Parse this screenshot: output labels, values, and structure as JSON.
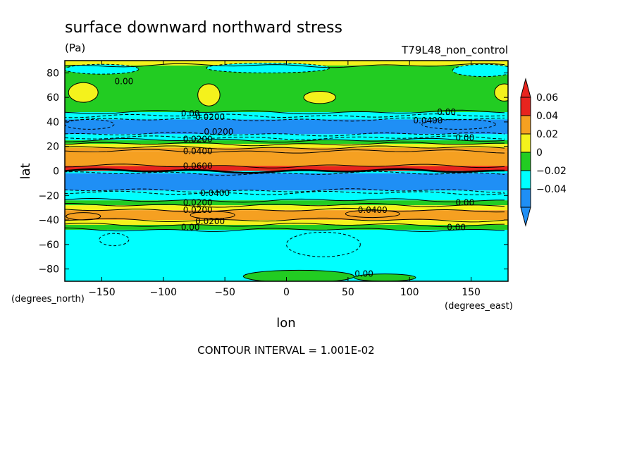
{
  "chart_data": {
    "type": "heatmap",
    "title": "surface downward northward stress",
    "units": "(Pa)",
    "run_label": "T79L48_non_control",
    "xlabel": "lon",
    "ylabel": "lat",
    "x_units": "(degrees_east)",
    "y_units": "(degrees_north)",
    "xlim": [
      -180,
      180
    ],
    "ylim": [
      -90,
      90
    ],
    "x_ticks": [
      -150,
      -100,
      -50,
      0,
      50,
      100,
      150
    ],
    "y_ticks": [
      80,
      60,
      40,
      20,
      0,
      -20,
      -40,
      -60,
      -80
    ],
    "x_tick_labels": [
      "−150",
      "−100",
      "−50",
      "0",
      "50",
      "100",
      "150"
    ],
    "y_tick_labels": [
      "80",
      "60",
      "40",
      "20",
      "0",
      "−20",
      "−40",
      "−60",
      "−80"
    ],
    "footer": "CONTOUR INTERVAL = 1.001E-02",
    "colorbar": {
      "labels": [
        "0.06",
        "0.04",
        "0.02",
        "0",
        "−0.02",
        "−0.04"
      ],
      "levels": [
        0.06,
        0.04,
        0.02,
        0,
        -0.02,
        -0.04
      ],
      "colors": [
        "#e8241e",
        "#f5a021",
        "#f4f21c",
        "#22cc22",
        "#00ffff",
        "#1f8ff5"
      ]
    },
    "zonal_bands": [
      {
        "lat_from": 90,
        "lat_to": 86,
        "value": 0.01
      },
      {
        "lat_from": 86,
        "lat_to": 48,
        "value": 0.005
      },
      {
        "lat_from": 48,
        "lat_to": 45,
        "value": -0.005
      },
      {
        "lat_from": 45,
        "lat_to": 42,
        "value": -0.015
      },
      {
        "lat_from": 42,
        "lat_to": 30,
        "value": -0.025
      },
      {
        "lat_from": 30,
        "lat_to": 27,
        "value": -0.015
      },
      {
        "lat_from": 27,
        "lat_to": 25,
        "value": -0.005
      },
      {
        "lat_from": 25,
        "lat_to": 22,
        "value": 0.005
      },
      {
        "lat_from": 22,
        "lat_to": 19,
        "value": 0.015
      },
      {
        "lat_from": 19,
        "lat_to": 16,
        "value": 0.025
      },
      {
        "lat_from": 16,
        "lat_to": 4,
        "value": 0.035
      },
      {
        "lat_from": 4,
        "lat_to": 0,
        "value": 0.05
      },
      {
        "lat_from": 0,
        "lat_to": -2,
        "value": -0.005
      },
      {
        "lat_from": -2,
        "lat_to": -16,
        "value": -0.035
      },
      {
        "lat_from": -16,
        "lat_to": -18,
        "value": -0.015
      },
      {
        "lat_from": -18,
        "lat_to": -24,
        "value": -0.005
      },
      {
        "lat_from": -24,
        "lat_to": -28,
        "value": 0.005
      },
      {
        "lat_from": -28,
        "lat_to": -32,
        "value": 0.015
      },
      {
        "lat_from": -32,
        "lat_to": -40,
        "value": 0.025
      },
      {
        "lat_from": -40,
        "lat_to": -44,
        "value": 0.015
      },
      {
        "lat_from": -44,
        "lat_to": -48,
        "value": 0.005
      },
      {
        "lat_from": -48,
        "lat_to": -90,
        "value": -0.005
      }
    ],
    "features": [
      {
        "type": "blob",
        "lon": -165,
        "lat": 64,
        "rlon": 12,
        "rlat": 8,
        "value": 0.015
      },
      {
        "type": "blob",
        "lon": -63,
        "lat": 62,
        "rlon": 9,
        "rlat": 9,
        "value": 0.015
      },
      {
        "type": "blob",
        "lon": 27,
        "lat": 60,
        "rlon": 13,
        "rlat": 5,
        "value": 0.015
      },
      {
        "type": "blob",
        "lon": 177,
        "lat": 64,
        "rlon": 8,
        "rlat": 7,
        "value": 0.015
      },
      {
        "type": "blob",
        "lon": -150,
        "lat": 83,
        "rlon": 30,
        "rlat": 4,
        "value": -0.005
      },
      {
        "type": "blob",
        "lon": -15,
        "lat": 84,
        "rlon": 50,
        "rlat": 4,
        "value": -0.005
      },
      {
        "type": "blob",
        "lon": 160,
        "lat": 82,
        "rlon": 25,
        "rlat": 5,
        "value": -0.005
      },
      {
        "type": "blob",
        "lon": -160,
        "lat": 38,
        "rlon": 20,
        "rlat": 4,
        "value": -0.035
      },
      {
        "type": "blob",
        "lon": 140,
        "lat": 38,
        "rlon": 30,
        "rlat": 4,
        "value": -0.035
      },
      {
        "type": "blob",
        "lon": -165,
        "lat": -37,
        "rlon": 14,
        "rlat": 3,
        "value": 0.035
      },
      {
        "type": "blob",
        "lon": -60,
        "lat": -36,
        "rlon": 18,
        "rlat": 3,
        "value": 0.035
      },
      {
        "type": "blob",
        "lon": 70,
        "lat": -35,
        "rlon": 22,
        "rlat": 3,
        "value": 0.035
      },
      {
        "type": "blob",
        "lon": -140,
        "lat": -56,
        "rlon": 12,
        "rlat": 5,
        "value": -0.015
      },
      {
        "type": "blob",
        "lon": 30,
        "lat": -60,
        "rlon": 30,
        "rlat": 10,
        "value": -0.015
      },
      {
        "type": "blob",
        "lon": 10,
        "lat": -86,
        "rlon": 45,
        "rlat": 5,
        "value": 0.005
      },
      {
        "type": "blob",
        "lon": 80,
        "lat": -87,
        "rlon": 25,
        "rlat": 3,
        "value": 0.005
      }
    ],
    "contour_labels": [
      {
        "text": "0.00",
        "lon": -132,
        "lat": 73
      },
      {
        "text": "0.00",
        "lon": -78,
        "lat": 47
      },
      {
        "text": "0.0200",
        "lon": -62,
        "lat": 44
      },
      {
        "text": "0.0200",
        "lon": -55,
        "lat": 32
      },
      {
        "text": "0.0400",
        "lon": 115,
        "lat": 41
      },
      {
        "text": "0.00",
        "lon": 130,
        "lat": 48
      },
      {
        "text": "0.00",
        "lon": 145,
        "lat": 27
      },
      {
        "text": "0.0200",
        "lon": -72,
        "lat": 26
      },
      {
        "text": "0.0400",
        "lon": -72,
        "lat": 16
      },
      {
        "text": "0.0600",
        "lon": -72,
        "lat": 4
      },
      {
        "text": "0.0400",
        "lon": -58,
        "lat": -18
      },
      {
        "text": "0.0200",
        "lon": -72,
        "lat": -26
      },
      {
        "text": "0.0200",
        "lon": -72,
        "lat": -32
      },
      {
        "text": "0.0400",
        "lon": 70,
        "lat": -32
      },
      {
        "text": "0.00",
        "lon": 145,
        "lat": -26
      },
      {
        "text": "0.0200",
        "lon": -62,
        "lat": -41
      },
      {
        "text": "0.00",
        "lon": -78,
        "lat": -46
      },
      {
        "text": "0.00",
        "lon": 138,
        "lat": -46
      },
      {
        "text": "0.00",
        "lon": 63,
        "lat": -84
      }
    ]
  }
}
